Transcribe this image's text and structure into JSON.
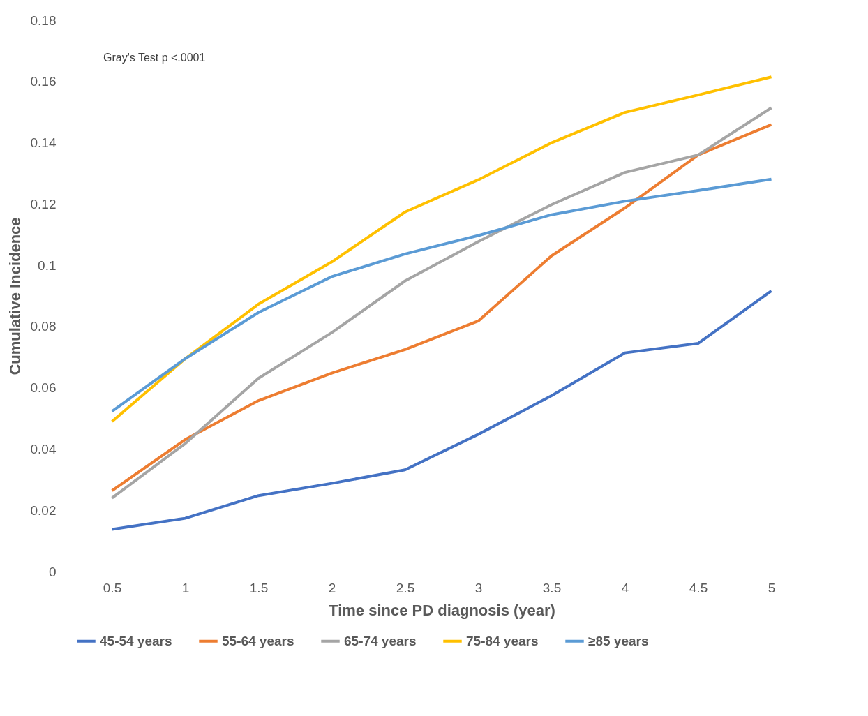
{
  "chart_data": {
    "type": "line",
    "xlabel": "Time since PD diagnosis (year)",
    "ylabel": "Cumulative Incidence",
    "categories": [
      "0.5",
      "1",
      "1.5",
      "2",
      "2.5",
      "3",
      "3.5",
      "4",
      "4.5",
      "5"
    ],
    "series": [
      {
        "name": "45-54 years",
        "color": "#4472c4",
        "values": [
          0.0138,
          0.0174,
          0.0248,
          0.0288,
          0.0332,
          0.0448,
          0.0574,
          0.0714,
          0.0745,
          0.0916
        ]
      },
      {
        "name": "55-64 years",
        "color": "#ed7d31",
        "values": [
          0.0264,
          0.0431,
          0.0558,
          0.0648,
          0.0725,
          0.0818,
          0.1031,
          0.1187,
          0.136,
          0.1459
        ]
      },
      {
        "name": "65-74 years",
        "color": "#a5a5a5",
        "values": [
          0.024,
          0.0418,
          0.0631,
          0.078,
          0.0949,
          0.1077,
          0.1198,
          0.1303,
          0.136,
          0.1514
        ]
      },
      {
        "name": "75-84 years",
        "color": "#ffc000",
        "values": [
          0.049,
          0.0695,
          0.0873,
          0.1011,
          0.1174,
          0.1279,
          0.14,
          0.1499,
          0.1556,
          0.1615
        ]
      },
      {
        "name": "≥85 years",
        "color": "#5b9bd5",
        "values": [
          0.0523,
          0.0695,
          0.0846,
          0.0963,
          0.1037,
          0.1097,
          0.1165,
          0.1209,
          0.1244,
          0.1281
        ]
      }
    ],
    "ylim": [
      0,
      0.18
    ],
    "yticks": [
      0,
      0.02,
      0.04,
      0.06,
      0.08,
      0.1,
      0.12,
      0.14,
      0.16,
      0.18
    ],
    "annotations": [
      "Gray's Test p <.0001"
    ],
    "grid": false,
    "legend": "bottom",
    "line_style": "solid"
  }
}
